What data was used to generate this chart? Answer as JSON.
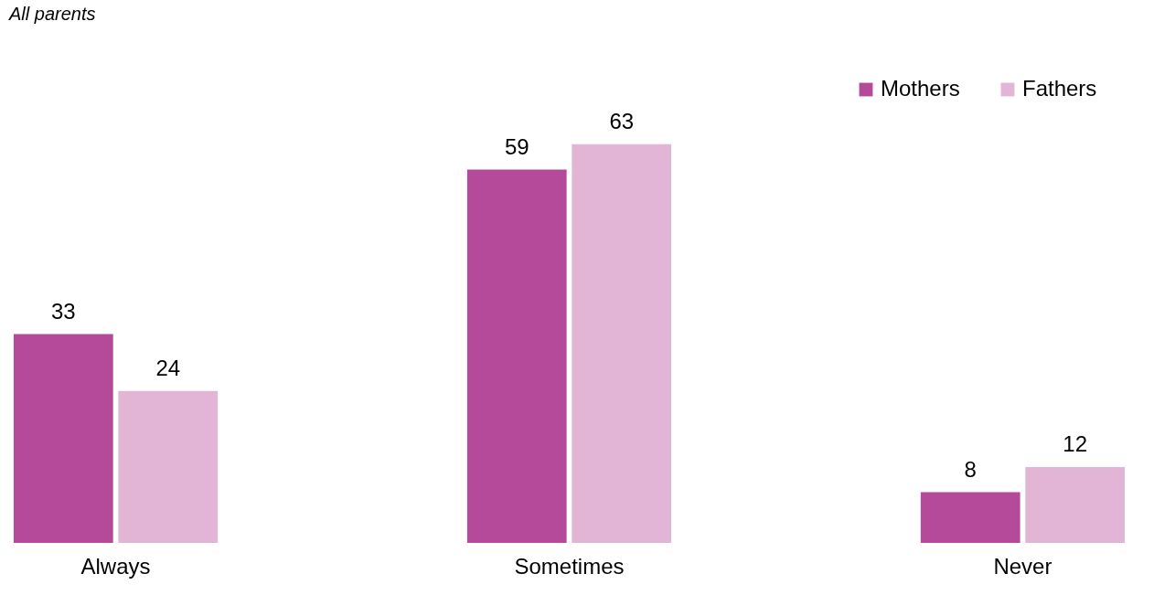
{
  "chart_data": {
    "type": "bar",
    "subtitle": "All parents",
    "categories": [
      "Always",
      "Sometimes",
      "Never"
    ],
    "series": [
      {
        "name": "Mothers",
        "color": "#b5499a",
        "values": [
          33,
          59,
          8
        ]
      },
      {
        "name": "Fathers",
        "color": "#e2b5d6",
        "values": [
          24,
          63,
          12
        ]
      }
    ],
    "data_labels": true,
    "legend": "top right",
    "grid": false
  }
}
